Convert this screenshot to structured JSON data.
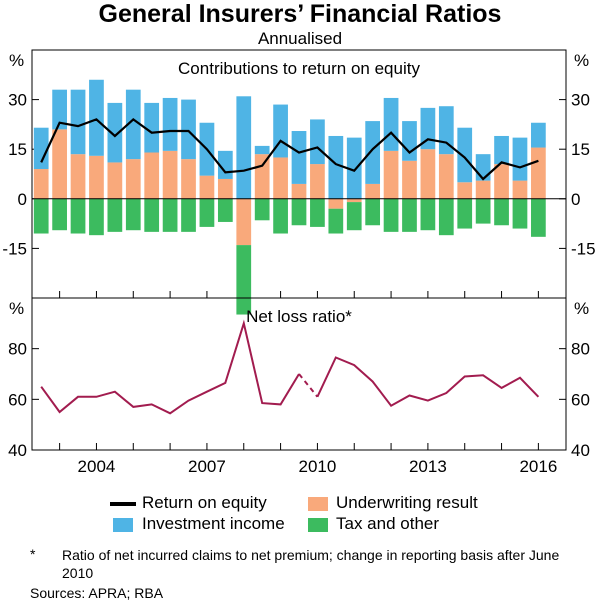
{
  "title": "General Insurers’ Financial Ratios",
  "subtitle": "Annualised",
  "colors": {
    "underwriting": "#F9A97B",
    "investment": "#4FB4E5",
    "tax": "#3CBB5F",
    "roe_line": "#000000",
    "nlr_line": "#A21C4F",
    "frame": "#000000"
  },
  "legend": {
    "roe": "Return on equity",
    "investment": "Investment income",
    "underwriting": "Underwriting result",
    "tax": "Tax and other"
  },
  "footnote": {
    "mark": "*",
    "text": "Ratio of net incurred claims to net premium; change in reporting basis after June 2010"
  },
  "sources": "Sources:   APRA; RBA",
  "chart_data": [
    {
      "type": "bar",
      "title": "Contributions to return on equity",
      "unit_left": "%",
      "unit_right": "%",
      "ylim": [
        -30,
        45
      ],
      "yticks": [
        -15,
        0,
        15,
        30
      ],
      "ytick_labels": [
        "-15",
        "0",
        "15",
        "30"
      ],
      "x_start": 2002.5,
      "x_step": 0.5,
      "series": [
        {
          "name": "Underwriting result",
          "key": "underwriting",
          "values": [
            9,
            21,
            13.5,
            13,
            11,
            12,
            14,
            14.5,
            12,
            7,
            6,
            -14,
            13.5,
            12.5,
            4.5,
            10.5,
            -3,
            -1,
            4.5,
            14.5,
            11.5,
            15,
            13.5,
            5,
            5.5,
            10.5,
            5.5,
            15.5
          ]
        },
        {
          "name": "Investment income",
          "key": "investment",
          "values": [
            12.5,
            12,
            19.5,
            23,
            18,
            21,
            15,
            16,
            18,
            16,
            8.5,
            31,
            2.5,
            16,
            16,
            13.5,
            19,
            18.5,
            19,
            16,
            12,
            12.5,
            14.5,
            16.5,
            8,
            8.5,
            13,
            7.5
          ]
        },
        {
          "name": "Tax and other",
          "key": "tax",
          "values": [
            -10.5,
            -9.5,
            -10.5,
            -11,
            -10,
            -9.5,
            -10,
            -10,
            -10,
            -8.5,
            -7,
            -21,
            -6.5,
            -10.5,
            -8,
            -8.5,
            -7.5,
            -8.5,
            -8,
            -10,
            -10,
            -9.5,
            -11,
            -9,
            -7.5,
            -8,
            -9,
            -11.5
          ]
        },
        {
          "name": "Return on equity",
          "key": "roe",
          "type": "line",
          "values": [
            11,
            23,
            22,
            24,
            19,
            24,
            20,
            20.5,
            20.5,
            15,
            8,
            8.5,
            10,
            17.5,
            14,
            15.5,
            10.5,
            8.5,
            15,
            20,
            14,
            18,
            17,
            12.5,
            6,
            11,
            9.5,
            11.5
          ]
        }
      ]
    },
    {
      "type": "line",
      "title": "Net loss ratio*",
      "unit_left": "%",
      "unit_right": "%",
      "ylim": [
        40,
        100
      ],
      "yticks": [
        40,
        60,
        80
      ],
      "ytick_labels": [
        "40",
        "60",
        "80"
      ],
      "x_start": 2002.5,
      "x_step": 0.5,
      "series": [
        {
          "name": "Net loss ratio",
          "key": "nlr",
          "values": [
            65,
            55,
            61,
            61,
            63,
            57,
            58,
            54.5,
            59.5,
            63,
            66.5,
            90,
            58.5,
            58,
            70,
            61,
            76.5,
            73.5,
            67,
            57.5,
            61.5,
            59.5,
            62.5,
            69,
            69.5,
            64.5,
            68.5,
            61
          ],
          "break_after_index": 14
        }
      ]
    }
  ],
  "x_axis": {
    "range": [
      2002.25,
      2016.75
    ],
    "tick_years": [
      2003,
      2004,
      2005,
      2006,
      2007,
      2008,
      2009,
      2010,
      2011,
      2012,
      2013,
      2014,
      2015,
      2016
    ],
    "labels": [
      "2004",
      "2007",
      "2010",
      "2013",
      "2016"
    ],
    "label_years": [
      2004,
      2007,
      2010,
      2013,
      2016
    ]
  }
}
